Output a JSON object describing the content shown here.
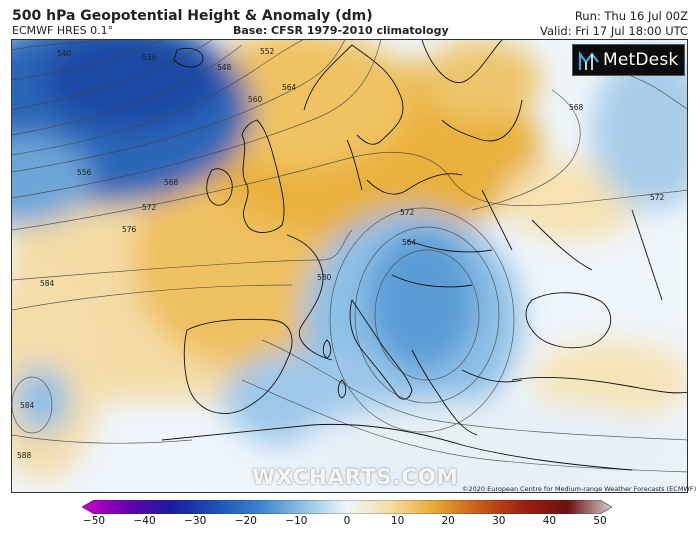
{
  "header": {
    "title": "500 hPa Geopotential Height & Anomaly (dm)",
    "model": "ECMWF HRES 0.1°",
    "base": "Base: CFSR 1979-2010 climatology",
    "run": "Run: Thu 16 Jul 00Z",
    "valid": "Valid: Fri 17 Jul 18:00 UTC"
  },
  "logo": {
    "text": "MetDesk",
    "icon": "metdesk-logo-icon"
  },
  "watermark": "WXCHARTS.COM",
  "copyright": "©2020 European Centre for Medium-range Weather Forecasts (ECMWF)",
  "contours": {
    "labels": [
      "540",
      "536",
      "552",
      "548",
      "560",
      "564",
      "556",
      "568",
      "572",
      "576",
      "580",
      "584",
      "564",
      "572",
      "568",
      "572",
      "584",
      "588"
    ]
  },
  "colorbar": {
    "min": -50,
    "max": 50,
    "ticks": [
      "−50",
      "−40",
      "−30",
      "−20",
      "−10",
      "0",
      "10",
      "20",
      "30",
      "40",
      "50"
    ],
    "colors": [
      "#c800c8",
      "#6a00b0",
      "#1a1aa0",
      "#1e4fb8",
      "#3a82cc",
      "#8ec0e6",
      "#eef6fc",
      "#f7dca2",
      "#e8a830",
      "#c85a18",
      "#9e2010",
      "#6a1010",
      "#d8d0d0"
    ]
  }
}
